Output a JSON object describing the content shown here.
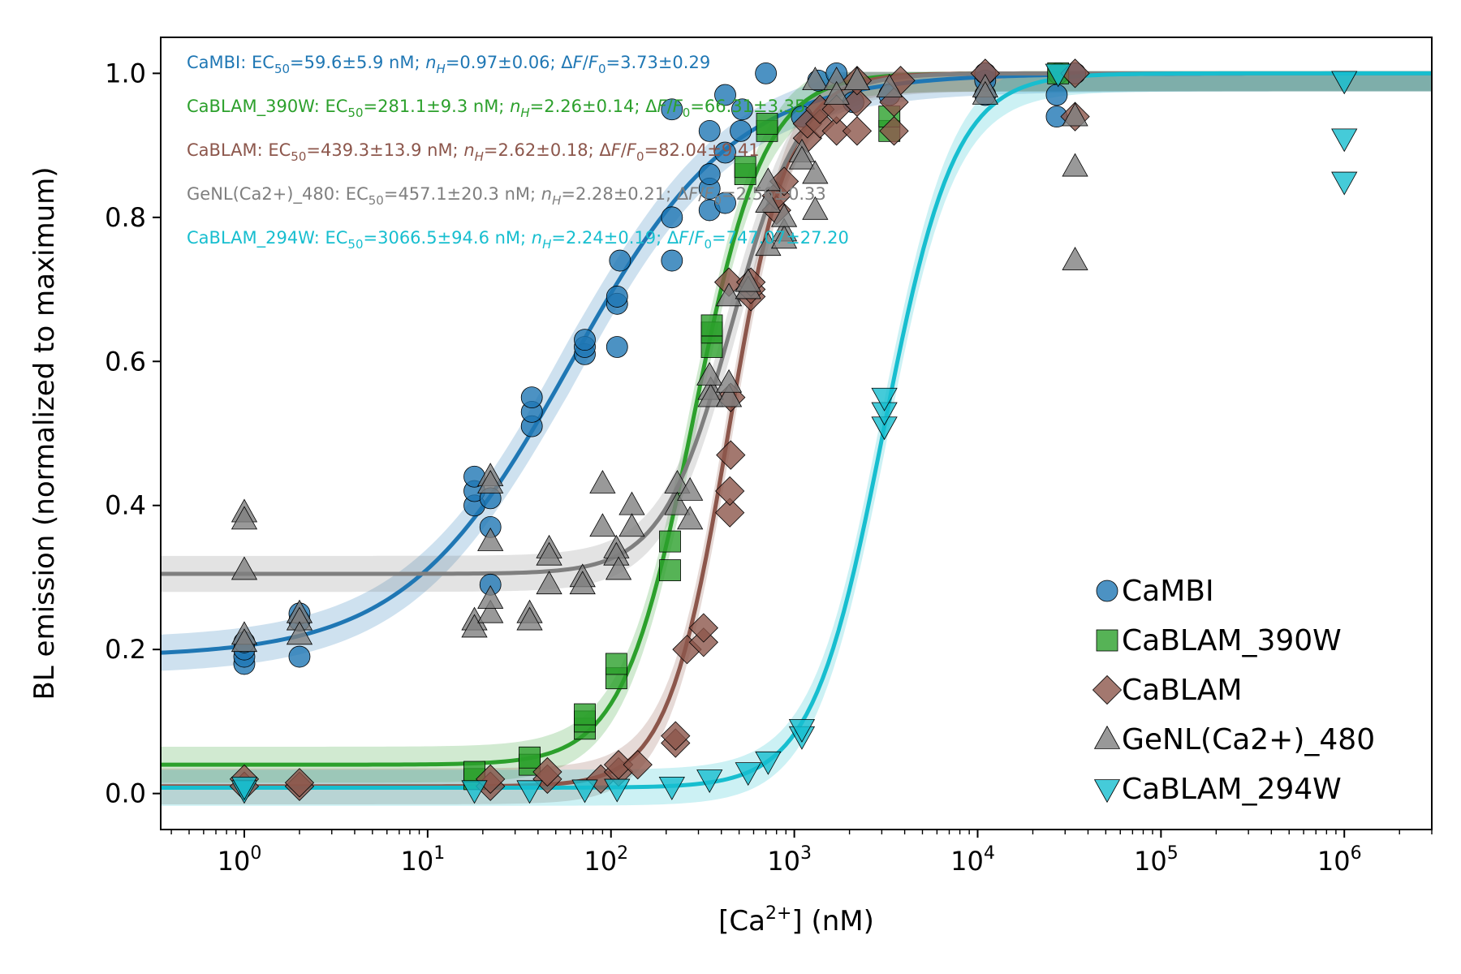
{
  "chart_data": {
    "type": "scatter",
    "xscale": "log",
    "xlim": [
      0.35,
      3000000
    ],
    "ylim": [
      -0.05,
      1.05
    ],
    "xlabel": "[Ca2+] (nM)",
    "xlabel_main": "[Ca",
    "xlabel_sup": "2+",
    "xlabel_tail": "] (nM)",
    "ylabel": "BL emission (normalized to maximum)",
    "ytick_labels": [
      "0.0",
      "0.2",
      "0.4",
      "0.6",
      "0.8",
      "1.0"
    ],
    "yticks": [
      0.0,
      0.2,
      0.4,
      0.6,
      0.8,
      1.0
    ],
    "xtick_exponents": [
      "0",
      "1",
      "2",
      "3",
      "4",
      "5",
      "6"
    ],
    "xtick_base": "10",
    "grid": false,
    "legend_position": "lower-right",
    "legend": [
      "CaMBI",
      "CaBLAM_390W",
      "CaBLAM",
      "GeNL(Ca2+)_480",
      "CaBLAM_294W"
    ],
    "annotations": [
      {
        "prefix": "CaMBI: EC",
        "ec50": "=59.6±5.9 nM; ",
        "nh": "=0.97±0.06; ",
        "df": "=3.73±0.29",
        "color": "#1f77b4"
      },
      {
        "prefix": "CaBLAM_390W: EC",
        "ec50": "=281.1±9.3 nM; ",
        "nh": "=2.26±0.14; ",
        "df": "=66.31±3.35",
        "color": "#2ca02c"
      },
      {
        "prefix": "CaBLAM: EC",
        "ec50": "=439.3±13.9 nM; ",
        "nh": "=2.62±0.18; ",
        "df": "=82.04±9.41",
        "color": "#8c564b"
      },
      {
        "prefix": "GeNL(Ca2+)_480: EC",
        "ec50": "=457.1±20.3 nM; ",
        "nh": "=2.28±0.21; ",
        "df": "=2.56±0.33",
        "color": "#7f7f7f"
      },
      {
        "prefix": "CaBLAM_294W: EC",
        "ec50": "=3066.5±94.6 nM; ",
        "nh": "=2.24±0.19; ",
        "df": "=747.07±27.20",
        "color": "#17becf"
      }
    ],
    "series": [
      {
        "name": "CaMBI",
        "color": "#1f77b4",
        "marker": "circle",
        "fit": {
          "ec50": 59.6,
          "nh": 0.97,
          "bottom": 0.19,
          "top": 1.0
        },
        "points": [
          [
            1,
            0.18
          ],
          [
            1,
            0.19
          ],
          [
            1,
            0.2
          ],
          [
            1,
            0.21
          ],
          [
            2,
            0.19
          ],
          [
            2,
            0.24
          ],
          [
            2,
            0.25
          ],
          [
            18,
            0.4
          ],
          [
            18,
            0.42
          ],
          [
            18,
            0.44
          ],
          [
            22,
            0.29
          ],
          [
            22,
            0.37
          ],
          [
            22,
            0.41
          ],
          [
            37,
            0.51
          ],
          [
            37,
            0.53
          ],
          [
            37,
            0.55
          ],
          [
            72,
            0.61
          ],
          [
            72,
            0.62
          ],
          [
            72,
            0.63
          ],
          [
            108,
            0.62
          ],
          [
            108,
            0.68
          ],
          [
            108,
            0.69
          ],
          [
            112,
            0.74
          ],
          [
            215,
            0.74
          ],
          [
            215,
            0.8
          ],
          [
            215,
            0.95
          ],
          [
            345,
            0.81
          ],
          [
            345,
            0.84
          ],
          [
            345,
            0.86
          ],
          [
            345,
            0.92
          ],
          [
            420,
            0.82
          ],
          [
            420,
            0.89
          ],
          [
            420,
            0.97
          ],
          [
            510,
            0.92
          ],
          [
            520,
            0.95
          ],
          [
            700,
            1.0
          ],
          [
            1100,
            0.94
          ],
          [
            1350,
            0.99
          ],
          [
            1700,
            1.0
          ],
          [
            2100,
            0.96
          ],
          [
            3300,
            0.97
          ],
          [
            11000,
            0.97
          ],
          [
            11000,
            0.99
          ],
          [
            11000,
            1.0
          ],
          [
            27000,
            0.94
          ],
          [
            27000,
            0.97
          ],
          [
            27500,
            1.0
          ],
          [
            34000,
            1.0
          ]
        ]
      },
      {
        "name": "CaBLAM_390W",
        "color": "#2ca02c",
        "marker": "square",
        "fit": {
          "ec50": 281.1,
          "nh": 2.26,
          "bottom": 0.04,
          "top": 1.0
        },
        "points": [
          [
            18,
            0.02
          ],
          [
            18,
            0.03
          ],
          [
            36,
            0.04
          ],
          [
            36,
            0.05
          ],
          [
            72,
            0.09
          ],
          [
            72,
            0.1
          ],
          [
            72,
            0.11
          ],
          [
            107,
            0.16
          ],
          [
            107,
            0.18
          ],
          [
            210,
            0.31
          ],
          [
            210,
            0.35
          ],
          [
            355,
            0.62
          ],
          [
            355,
            0.64
          ],
          [
            355,
            0.65
          ],
          [
            540,
            0.86
          ],
          [
            540,
            0.87
          ],
          [
            710,
            0.92
          ],
          [
            710,
            0.93
          ],
          [
            3300,
            0.92
          ],
          [
            3300,
            0.94
          ],
          [
            27500,
            1.0
          ]
        ]
      },
      {
        "name": "CaBLAM",
        "color": "#8c564b",
        "marker": "diamond",
        "fit": {
          "ec50": 439.3,
          "nh": 2.62,
          "bottom": 0.01,
          "top": 1.0
        },
        "points": [
          [
            1,
            0.01
          ],
          [
            1,
            0.02
          ],
          [
            2,
            0.01
          ],
          [
            2,
            0.015
          ],
          [
            22,
            0.01
          ],
          [
            22,
            0.02
          ],
          [
            45,
            0.02
          ],
          [
            45,
            0.03
          ],
          [
            88,
            0.02
          ],
          [
            110,
            0.03
          ],
          [
            110,
            0.04
          ],
          [
            140,
            0.04
          ],
          [
            225,
            0.07
          ],
          [
            225,
            0.08
          ],
          [
            260,
            0.2
          ],
          [
            320,
            0.21
          ],
          [
            320,
            0.23
          ],
          [
            445,
            0.39
          ],
          [
            445,
            0.42
          ],
          [
            450,
            0.47
          ],
          [
            450,
            0.55
          ],
          [
            440,
            0.71
          ],
          [
            580,
            0.69
          ],
          [
            580,
            0.7
          ],
          [
            580,
            0.71
          ],
          [
            800,
            0.81
          ],
          [
            800,
            0.83
          ],
          [
            880,
            0.85
          ],
          [
            1180,
            0.91
          ],
          [
            1180,
            0.93
          ],
          [
            1380,
            0.93
          ],
          [
            1380,
            0.95
          ],
          [
            1700,
            0.92
          ],
          [
            1700,
            0.95
          ],
          [
            2200,
            0.92
          ],
          [
            2200,
            0.96
          ],
          [
            2200,
            0.99
          ],
          [
            3500,
            0.92
          ],
          [
            3500,
            0.96
          ],
          [
            3800,
            0.99
          ],
          [
            11000,
            1.0
          ],
          [
            34000,
            0.94
          ],
          [
            34000,
            1.0
          ]
        ]
      },
      {
        "name": "GeNL(Ca2+)_480",
        "color": "#7f7f7f",
        "marker": "triangle-up",
        "fit": {
          "ec50": 457.1,
          "nh": 2.28,
          "bottom": 0.305,
          "top": 1.0
        },
        "points": [
          [
            1,
            0.39
          ],
          [
            1,
            0.38
          ],
          [
            1,
            0.31
          ],
          [
            1,
            0.22
          ],
          [
            1,
            0.21
          ],
          [
            2,
            0.25
          ],
          [
            2,
            0.24
          ],
          [
            2,
            0.22
          ],
          [
            18,
            0.24
          ],
          [
            18,
            0.23
          ],
          [
            22,
            0.44
          ],
          [
            22,
            0.43
          ],
          [
            22,
            0.35
          ],
          [
            22,
            0.25
          ],
          [
            22,
            0.27
          ],
          [
            36,
            0.25
          ],
          [
            36,
            0.24
          ],
          [
            46,
            0.34
          ],
          [
            46,
            0.33
          ],
          [
            46,
            0.29
          ],
          [
            70,
            0.3
          ],
          [
            70,
            0.29
          ],
          [
            90,
            0.43
          ],
          [
            90,
            0.37
          ],
          [
            107,
            0.34
          ],
          [
            107,
            0.33
          ],
          [
            110,
            0.31
          ],
          [
            130,
            0.4
          ],
          [
            130,
            0.37
          ],
          [
            230,
            0.43
          ],
          [
            230,
            0.4
          ],
          [
            270,
            0.42
          ],
          [
            270,
            0.38
          ],
          [
            350,
            0.56
          ],
          [
            350,
            0.55
          ],
          [
            345,
            0.58
          ],
          [
            440,
            0.55
          ],
          [
            440,
            0.57
          ],
          [
            440,
            0.69
          ],
          [
            560,
            0.7
          ],
          [
            560,
            0.71
          ],
          [
            720,
            0.85
          ],
          [
            720,
            0.82
          ],
          [
            720,
            0.76
          ],
          [
            880,
            0.78
          ],
          [
            880,
            0.77
          ],
          [
            880,
            0.8
          ],
          [
            1100,
            0.89
          ],
          [
            1100,
            0.88
          ],
          [
            1300,
            0.86
          ],
          [
            1300,
            0.81
          ],
          [
            1300,
            0.99
          ],
          [
            1700,
            0.99
          ],
          [
            1700,
            0.97
          ],
          [
            2200,
            0.99
          ],
          [
            2200,
            0.99
          ],
          [
            3300,
            0.98
          ],
          [
            11000,
            0.98
          ],
          [
            11000,
            0.97
          ],
          [
            34000,
            0.94
          ],
          [
            34000,
            0.87
          ],
          [
            34000,
            0.74
          ]
        ]
      },
      {
        "name": "CaBLAM_294W",
        "color": "#17becf",
        "marker": "triangle-down",
        "fit": {
          "ec50": 3066.5,
          "nh": 2.24,
          "bottom": 0.008,
          "top": 1.0
        },
        "points": [
          [
            1,
            0.005
          ],
          [
            1,
            0.01
          ],
          [
            18,
            0.005
          ],
          [
            36,
            0.005
          ],
          [
            72,
            0.006
          ],
          [
            108,
            0.007
          ],
          [
            215,
            0.01
          ],
          [
            345,
            0.02
          ],
          [
            560,
            0.03
          ],
          [
            720,
            0.045
          ],
          [
            1100,
            0.08
          ],
          [
            1100,
            0.09
          ],
          [
            3100,
            0.51
          ],
          [
            3100,
            0.53
          ],
          [
            3100,
            0.55
          ],
          [
            27500,
            1.0
          ],
          [
            1000000,
            0.99
          ],
          [
            1000000,
            0.91
          ],
          [
            1000000,
            0.85
          ]
        ]
      }
    ]
  }
}
